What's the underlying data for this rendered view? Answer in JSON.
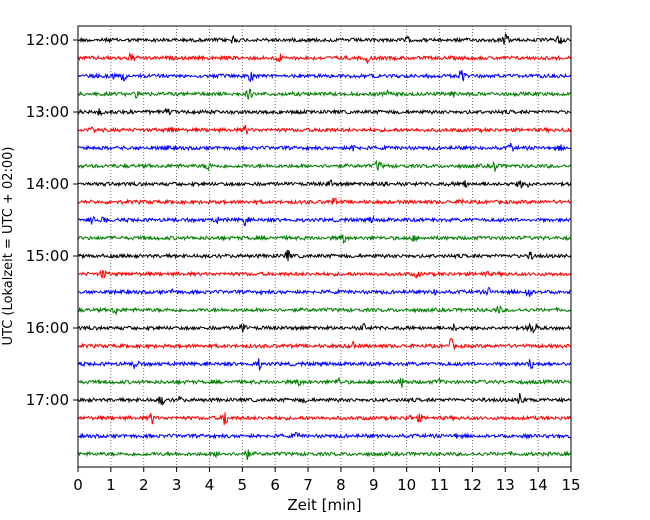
{
  "chart_data": {
    "type": "line",
    "title": "",
    "xlabel": "Zeit  [min]",
    "ylabel": "UTC (Lokalzeit = UTC + 02:00)",
    "xlim": [
      0,
      15
    ],
    "x_ticks": [
      "0",
      "1",
      "2",
      "3",
      "4",
      "5",
      "6",
      "7",
      "8",
      "9",
      "10",
      "11",
      "12",
      "13",
      "14",
      "15"
    ],
    "y_ticks": [
      "12:00",
      "13:00",
      "14:00",
      "15:00",
      "16:00",
      "17:00"
    ],
    "grid": "vertical dotted",
    "legend": "none",
    "trace_interval_minutes": 15,
    "color_cycle": [
      "#000000",
      "#ff0000",
      "#0000ff",
      "#007f00"
    ],
    "series": [
      {
        "start": "12:00",
        "color": "#000000"
      },
      {
        "start": "12:15",
        "color": "#ff0000"
      },
      {
        "start": "12:30",
        "color": "#0000ff"
      },
      {
        "start": "12:45",
        "color": "#007f00"
      },
      {
        "start": "13:00",
        "color": "#000000"
      },
      {
        "start": "13:15",
        "color": "#ff0000"
      },
      {
        "start": "13:30",
        "color": "#0000ff"
      },
      {
        "start": "13:45",
        "color": "#007f00"
      },
      {
        "start": "14:00",
        "color": "#000000"
      },
      {
        "start": "14:15",
        "color": "#ff0000"
      },
      {
        "start": "14:30",
        "color": "#0000ff"
      },
      {
        "start": "14:45",
        "color": "#007f00"
      },
      {
        "start": "15:00",
        "color": "#000000"
      },
      {
        "start": "15:15",
        "color": "#ff0000"
      },
      {
        "start": "15:30",
        "color": "#0000ff"
      },
      {
        "start": "15:45",
        "color": "#007f00"
      },
      {
        "start": "16:00",
        "color": "#000000"
      },
      {
        "start": "16:15",
        "color": "#ff0000"
      },
      {
        "start": "16:30",
        "color": "#0000ff"
      },
      {
        "start": "16:45",
        "color": "#007f00"
      },
      {
        "start": "17:00",
        "color": "#000000"
      },
      {
        "start": "17:15",
        "color": "#ff0000"
      },
      {
        "start": "17:30",
        "color": "#0000ff"
      },
      {
        "start": "17:45",
        "color": "#007f00"
      }
    ]
  }
}
